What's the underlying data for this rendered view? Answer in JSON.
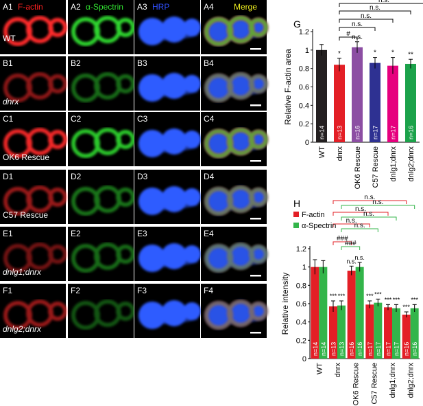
{
  "micrographs": {
    "rows": [
      {
        "id": "A",
        "genotype": "WT",
        "genotype_italic": false,
        "levels": [
          1.0,
          1.0,
          1.0
        ]
      },
      {
        "id": "B",
        "genotype": "dnrx",
        "genotype_italic": true,
        "levels": [
          0.55,
          0.5,
          1.0
        ]
      },
      {
        "id": "C",
        "genotype": "OK6 Rescue",
        "genotype_italic": false,
        "levels": [
          0.95,
          0.95,
          1.0
        ]
      },
      {
        "id": "D",
        "genotype": "C57 Rescue",
        "genotype_italic": false,
        "levels": [
          0.6,
          0.55,
          1.0
        ]
      },
      {
        "id": "E",
        "genotype": "dnlg1;dnrx",
        "genotype_italic": true,
        "levels": [
          0.45,
          0.5,
          1.0
        ]
      },
      {
        "id": "F",
        "genotype": "dnlg2;dnrx",
        "genotype_italic": true,
        "levels": [
          0.6,
          0.4,
          1.0
        ]
      }
    ],
    "columns": [
      {
        "index": 1,
        "label": "F-actin",
        "label_color": "#ff2020"
      },
      {
        "index": 2,
        "label": "α-Spectrin",
        "label_color": "#30e030"
      },
      {
        "index": 3,
        "label": "HRP",
        "label_color": "#3050ff"
      },
      {
        "index": 4,
        "label": "Merge",
        "label_color": "#f0f020"
      }
    ]
  },
  "chart_data": [
    {
      "panel": "G",
      "type": "bar",
      "categories": [
        "WT",
        "dnrx",
        "OK6 Rescue",
        "C57 Rescue",
        "dnlg1;dnrx",
        "dnlg2;dnrx"
      ],
      "values": [
        1.0,
        0.84,
        1.03,
        0.86,
        0.83,
        0.85
      ],
      "errors": [
        0.06,
        0.07,
        0.06,
        0.06,
        0.09,
        0.05
      ],
      "n_labels": [
        "n=14",
        "n=13",
        "n=16",
        "n=17",
        "n=17",
        "n=16"
      ],
      "bar_colors": [
        "#231f20",
        "#e31f26",
        "#8c4ea3",
        "#2e3192",
        "#e6007e",
        "#1ba24a"
      ],
      "significance": [
        "",
        "*",
        "n.s.",
        "*",
        "*",
        "**"
      ],
      "brackets": [
        {
          "from": 1,
          "to": 2,
          "label": "#"
        },
        {
          "from": 1,
          "to": 3,
          "label": "n.s."
        },
        {
          "from": 1,
          "to": 4,
          "label": "n.s."
        },
        {
          "from": 1,
          "to": 5,
          "label": "n.s."
        },
        {
          "from": 1,
          "to": 6,
          "label": "n.s."
        }
      ],
      "ylabel": "Relative F-actin area",
      "ylim": [
        0,
        1.2
      ],
      "yticks": [
        "0",
        "0.2",
        "0.4",
        "0.6",
        "0.8",
        "1",
        "1.2"
      ]
    },
    {
      "panel": "H",
      "type": "bar",
      "categories": [
        "WT",
        "dnrx",
        "OK6 Rescue",
        "C57 Rescue",
        "dnlg1;dnrx",
        "dnlg2;dnrx"
      ],
      "series": [
        {
          "name": "F-actin",
          "color": "#e31f26",
          "values": [
            1.0,
            0.57,
            0.96,
            0.59,
            0.56,
            0.48
          ],
          "errors": [
            0.08,
            0.06,
            0.05,
            0.04,
            0.03,
            0.03
          ],
          "n_labels": [
            "n=14",
            "n=13",
            "n=16",
            "n=17",
            "n=17",
            "n=16"
          ],
          "significance": [
            "",
            "***",
            "n.s.",
            "***",
            "***",
            "***"
          ]
        },
        {
          "name": "α-Spectrin",
          "color": "#33b54a",
          "values": [
            1.0,
            0.58,
            1.0,
            0.61,
            0.55,
            0.55
          ],
          "errors": [
            0.07,
            0.05,
            0.05,
            0.04,
            0.04,
            0.04
          ],
          "n_labels": [
            "n=14",
            "n=13",
            "n=16",
            "n=17",
            "n=17",
            "n=16"
          ],
          "significance": [
            "",
            "***",
            "n.s.",
            "***",
            "***",
            "***"
          ]
        }
      ],
      "brackets": [
        {
          "from": [
            1,
            0
          ],
          "to": [
            2,
            0
          ],
          "label": "###",
          "color": "#e31f26"
        },
        {
          "from": [
            1,
            1
          ],
          "to": [
            2,
            1
          ],
          "label": "###",
          "color": "#33b54a"
        },
        {
          "from": [
            1,
            0
          ],
          "to": [
            3,
            0
          ],
          "label": "n.s.",
          "color": "#e31f26"
        },
        {
          "from": [
            1,
            1
          ],
          "to": [
            3,
            1
          ],
          "label": "n.s.",
          "color": "#33b54a"
        },
        {
          "from": [
            1,
            0
          ],
          "to": [
            4,
            0
          ],
          "label": "n.s.",
          "color": "#e31f26"
        },
        {
          "from": [
            1,
            1
          ],
          "to": [
            4,
            1
          ],
          "label": "n.s.",
          "color": "#33b54a"
        },
        {
          "from": [
            1,
            0
          ],
          "to": [
            5,
            0
          ],
          "label": "n.s.",
          "color": "#e31f26"
        },
        {
          "from": [
            1,
            1
          ],
          "to": [
            5,
            1
          ],
          "label": "n.s.",
          "color": "#33b54a"
        }
      ],
      "ylabel": "Relative intensity",
      "ylim": [
        0,
        1.2
      ],
      "yticks": [
        "0",
        "0.2",
        "0.4",
        "0.6",
        "0.8",
        "1",
        "1.2"
      ],
      "legend_placement": "top-left"
    }
  ]
}
